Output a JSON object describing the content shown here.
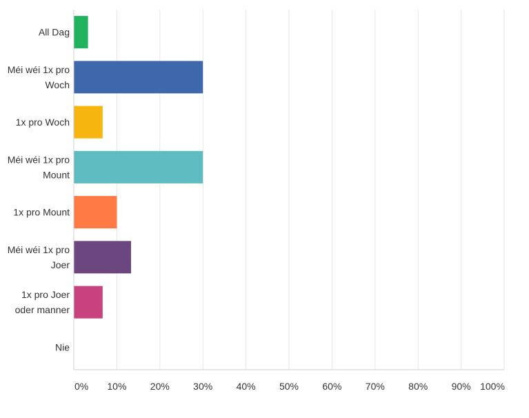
{
  "chart_data": {
    "type": "bar",
    "orientation": "horizontal",
    "title": "",
    "xlabel": "",
    "ylabel": "",
    "categories": [
      [
        "All Dag"
      ],
      [
        "Méi wéi 1x pro",
        "Woch"
      ],
      [
        "1x pro Woch"
      ],
      [
        "Méi wéi 1x pro",
        "Mount"
      ],
      [
        "1x pro Mount"
      ],
      [
        "Méi wéi 1x pro",
        "Joer"
      ],
      [
        "1x pro Joer",
        "oder manner"
      ],
      [
        "Nie"
      ]
    ],
    "values": [
      3.3,
      30.0,
      6.7,
      30.0,
      10.0,
      13.3,
      6.7,
      0.0
    ],
    "colors": [
      "#21b25e",
      "#3e68ab",
      "#f7b50f",
      "#5ebcc0",
      "#ff7a45",
      "#6c467e",
      "#c8427e",
      "#cccccc"
    ],
    "xlim": [
      0,
      100
    ],
    "xticks": [
      "0%",
      "10%",
      "20%",
      "30%",
      "40%",
      "50%",
      "60%",
      "70%",
      "80%",
      "90%",
      "100%"
    ],
    "grid": true,
    "legend": "none"
  }
}
